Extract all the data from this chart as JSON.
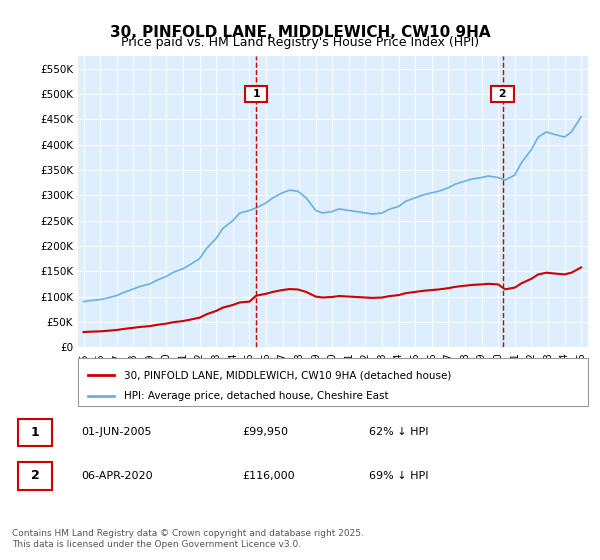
{
  "title1": "30, PINFOLD LANE, MIDDLEWICH, CW10 9HA",
  "title2": "Price paid vs. HM Land Registry's House Price Index (HPI)",
  "legend_property": "30, PINFOLD LANE, MIDDLEWICH, CW10 9HA (detached house)",
  "legend_hpi": "HPI: Average price, detached house, Cheshire East",
  "annotation1_label": "1",
  "annotation1_date": "01-JUN-2005",
  "annotation1_price": "£99,950",
  "annotation1_note": "62% ↓ HPI",
  "annotation2_label": "2",
  "annotation2_date": "06-APR-2020",
  "annotation2_price": "£116,000",
  "annotation2_note": "69% ↓ HPI",
  "footer": "Contains HM Land Registry data © Crown copyright and database right 2025.\nThis data is licensed under the Open Government Licence v3.0.",
  "hpi_color": "#6ab0e0",
  "property_color": "#cc0000",
  "annotation_line_color": "#cc0000",
  "bg_color": "#ddeeff",
  "plot_bg": "#ddeeff",
  "ylim_min": 0,
  "ylim_max": 575000,
  "xlabel": "",
  "ylabel": ""
}
